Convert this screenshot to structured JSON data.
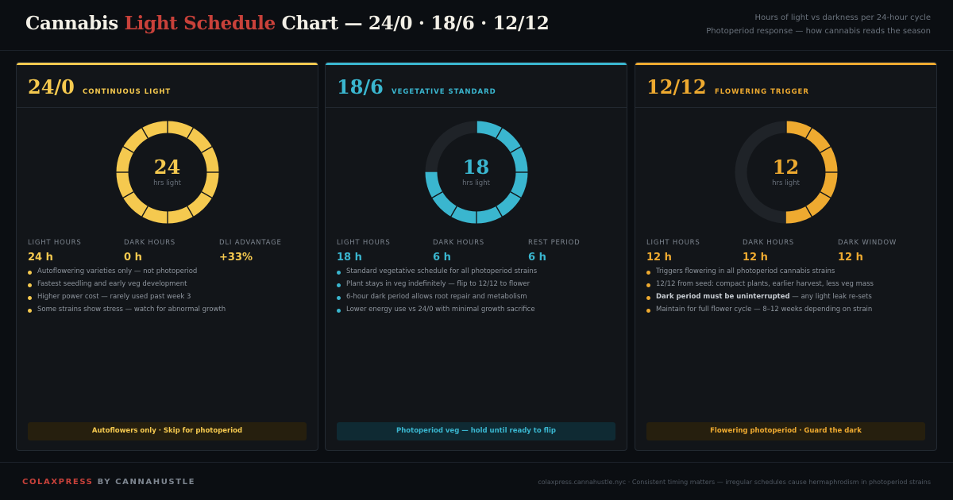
{
  "header": {
    "title_pre": "Cannabis ",
    "title_accent": "Light Schedule",
    "title_post": " Chart — 24/0 · 18/6 · 12/12",
    "subtitle_1": "Hours of light vs darkness per 24-hour cycle",
    "subtitle_2": "Photoperiod response — how cannabis reads the season"
  },
  "colors": {
    "accent_red": "#c8413a",
    "gold": "#f5c94f",
    "teal": "#3ab6cf",
    "orange": "#eeaa30",
    "donut_track": "#1f2328"
  },
  "cards": [
    {
      "ratio": "24/0",
      "mode": "CONTINUOUS LIGHT",
      "color": "#f5c94f",
      "light_hours": 24,
      "center_number": "24",
      "center_label": "hrs light",
      "stats": [
        {
          "label": "LIGHT HOURS",
          "value": "24 h"
        },
        {
          "label": "DARK HOURS",
          "value": "0 h"
        },
        {
          "label": "DLI ADVANTAGE",
          "value": "+33%"
        }
      ],
      "bullets": [
        {
          "bold": "",
          "text": "Autoflowering varieties only — not photoperiod"
        },
        {
          "bold": "",
          "text": "Fastest seedling and early veg development"
        },
        {
          "bold": "",
          "text": "Higher power cost — rarely used past week 3"
        },
        {
          "bold": "",
          "text": "Some strains show stress — watch for abnormal growth"
        }
      ],
      "footnote": "Autoflowers only  ·  Skip for photoperiod",
      "footnote_bg": "#261f0e"
    },
    {
      "ratio": "18/6",
      "mode": "VEGETATIVE STANDARD",
      "color": "#3ab6cf",
      "light_hours": 18,
      "center_number": "18",
      "center_label": "hrs light",
      "stats": [
        {
          "label": "LIGHT HOURS",
          "value": "18 h"
        },
        {
          "label": "DARK HOURS",
          "value": "6 h"
        },
        {
          "label": "REST PERIOD",
          "value": "6 h"
        }
      ],
      "bullets": [
        {
          "bold": "",
          "text": "Standard vegetative schedule for all photoperiod strains"
        },
        {
          "bold": "",
          "text": "Plant stays in veg indefinitely — flip to 12/12 to flower"
        },
        {
          "bold": "",
          "text": "6-hour dark period allows root repair and metabolism"
        },
        {
          "bold": "",
          "text": "Lower energy use vs 24/0 with minimal growth sacrifice"
        }
      ],
      "footnote": "Photoperiod veg — hold until ready to flip",
      "footnote_bg": "#0f2a33"
    },
    {
      "ratio": "12/12",
      "mode": "FLOWERING TRIGGER",
      "color": "#eeaa30",
      "light_hours": 12,
      "center_number": "12",
      "center_label": "hrs light",
      "stats": [
        {
          "label": "LIGHT HOURS",
          "value": "12 h"
        },
        {
          "label": "DARK HOURS",
          "value": "12 h"
        },
        {
          "label": "DARK WINDOW",
          "value": "12 h"
        }
      ],
      "bullets": [
        {
          "bold": "",
          "text": "Triggers flowering in all photoperiod cannabis strains"
        },
        {
          "bold": "",
          "text": "12/12 from seed: compact plants, earlier harvest, less veg mass"
        },
        {
          "bold": "Dark period must be uninterrupted",
          "text": " — any light leak re-sets"
        },
        {
          "bold": "",
          "text": "Maintain for full flower cycle — 8–12 weeks depending on strain"
        }
      ],
      "footnote": "Flowering photoperiod  ·  Guard the dark",
      "footnote_bg": "#261f0e"
    }
  ],
  "footer": {
    "brand_1": "COLAXPRESS",
    "brand_2": " BY CANNAHUSTLE",
    "note": "colaxpress.cannahustle.nyc · Consistent timing matters — irregular schedules cause hermaphrodism in photoperiod strains"
  }
}
